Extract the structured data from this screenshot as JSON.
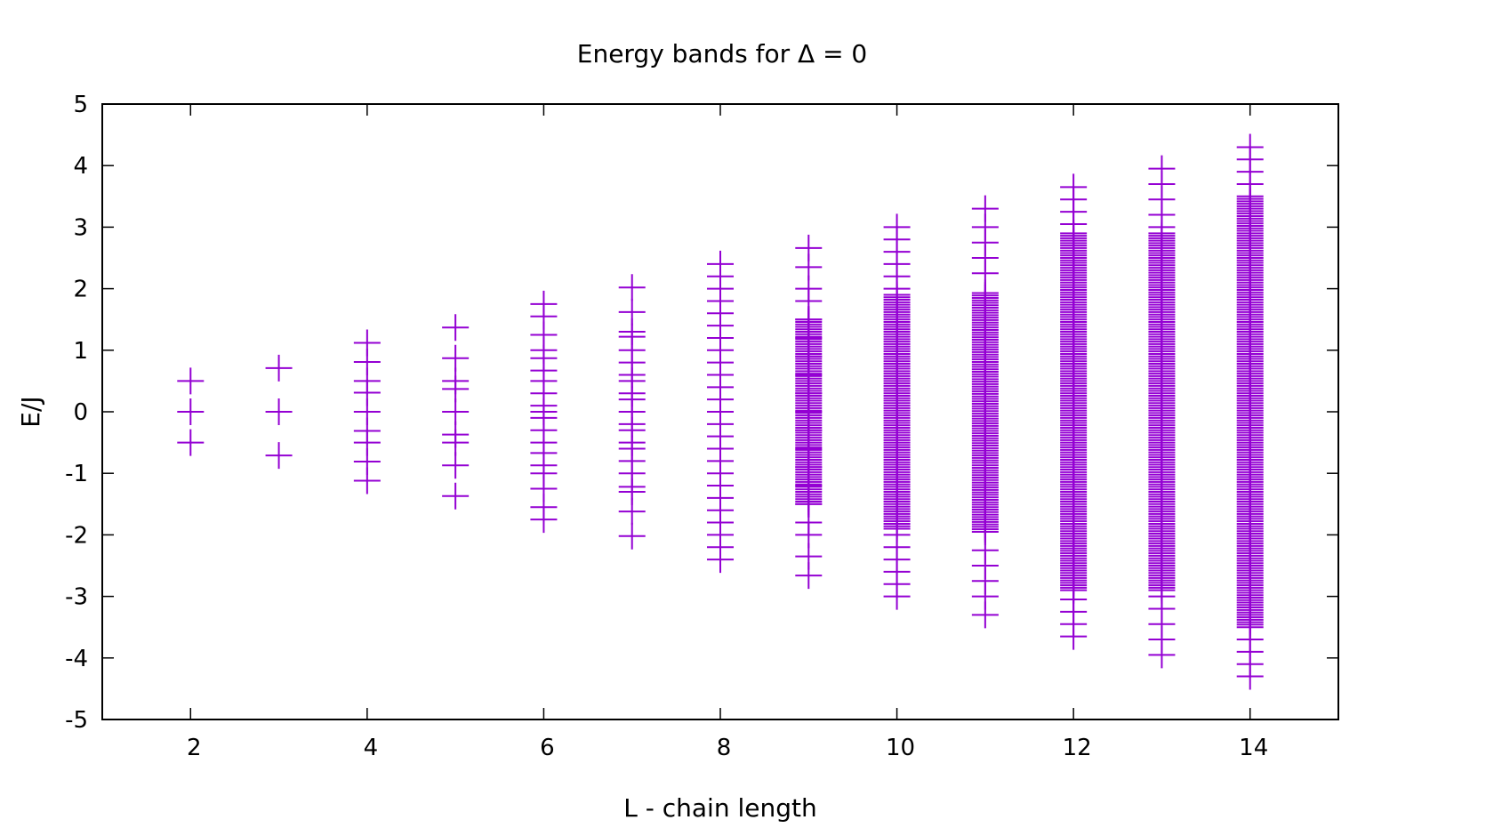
{
  "chart_data": {
    "type": "scatter",
    "title": "Energy bands for Δ = 0",
    "xlabel": "L - chain length",
    "ylabel": "E/J",
    "xlim": [
      1,
      15
    ],
    "ylim": [
      -5,
      5
    ],
    "xticks": [
      2,
      4,
      6,
      8,
      10,
      12,
      14
    ],
    "yticks": [
      -5,
      -4,
      -3,
      -2,
      -1,
      0,
      1,
      2,
      3,
      4,
      5
    ],
    "marker": "plus",
    "grid": false,
    "legend": "none",
    "color": "#9400d3",
    "series": [
      {
        "x": 2,
        "y": [
          -0.5,
          0,
          0.5
        ]
      },
      {
        "x": 3,
        "y": [
          -0.71,
          0,
          0.71
        ]
      },
      {
        "x": 4,
        "y": [
          -1.12,
          -0.81,
          -0.5,
          -0.31,
          0,
          0.31,
          0.5,
          0.81,
          1.12
        ]
      },
      {
        "x": 5,
        "y": [
          -1.37,
          -0.87,
          -0.5,
          -0.37,
          0,
          0.37,
          0.5,
          0.87,
          1.37
        ]
      },
      {
        "x": 6,
        "y": [
          -1.75,
          -1.55,
          -1.25,
          -1.0,
          -0.87,
          -0.67,
          -0.5,
          -0.3,
          -0.1,
          0,
          0.1,
          0.3,
          0.5,
          0.67,
          0.87,
          1.0,
          1.25,
          1.55,
          1.75
        ]
      },
      {
        "x": 7,
        "y": [
          -2.02,
          -1.62,
          -1.3,
          -1.22,
          -1.0,
          -0.8,
          -0.6,
          -0.5,
          -0.3,
          -0.2,
          0,
          0.2,
          0.3,
          0.5,
          0.6,
          0.8,
          1.0,
          1.22,
          1.3,
          1.62,
          2.02
        ]
      },
      {
        "x": 8,
        "y": [
          -2.4,
          -2.2,
          -2.0,
          -1.8,
          -1.6,
          -1.4,
          -1.2,
          -1.0,
          -0.8,
          -0.6,
          -0.4,
          -0.2,
          0,
          0.2,
          0.4,
          0.6,
          0.8,
          1.0,
          1.2,
          1.4,
          1.6,
          1.8,
          2.0,
          2.2,
          2.4
        ]
      },
      {
        "x": 9,
        "y": [
          -2.66,
          -2.35,
          -2.0,
          -1.8,
          -1.5,
          -1.2,
          -0.9,
          -0.6,
          -0.3,
          0,
          0.3,
          0.6,
          0.9,
          1.2,
          1.5,
          1.8,
          2.0,
          2.35,
          2.66
        ],
        "dense_range": [
          -1.5,
          1.5
        ]
      },
      {
        "x": 10,
        "y": [
          -3.0,
          -2.8,
          -2.6,
          -2.4,
          -2.2,
          -2.0,
          2.0,
          2.2,
          2.4,
          2.6,
          2.8,
          3.0
        ],
        "dense_range": [
          -1.9,
          1.9
        ]
      },
      {
        "x": 11,
        "y": [
          -3.3,
          -3.0,
          -2.75,
          -2.5,
          -2.25,
          2.25,
          2.5,
          2.75,
          3.0,
          3.3
        ],
        "dense_range": [
          -1.95,
          1.95
        ]
      },
      {
        "x": 12,
        "y": [
          -3.65,
          -3.45,
          -3.25,
          -3.05,
          3.05,
          3.25,
          3.45,
          3.65
        ],
        "dense_range": [
          -2.9,
          2.9
        ]
      },
      {
        "x": 13,
        "y": [
          -3.95,
          -3.7,
          -3.45,
          -3.2,
          -3.0,
          3.0,
          3.2,
          3.45,
          3.7,
          3.95
        ],
        "dense_range": [
          -2.9,
          2.9
        ]
      },
      {
        "x": 14,
        "y": [
          -4.3,
          -4.1,
          -3.9,
          -3.7,
          3.7,
          3.9,
          4.1,
          4.3
        ],
        "dense_range": [
          -3.5,
          3.5
        ]
      }
    ]
  }
}
